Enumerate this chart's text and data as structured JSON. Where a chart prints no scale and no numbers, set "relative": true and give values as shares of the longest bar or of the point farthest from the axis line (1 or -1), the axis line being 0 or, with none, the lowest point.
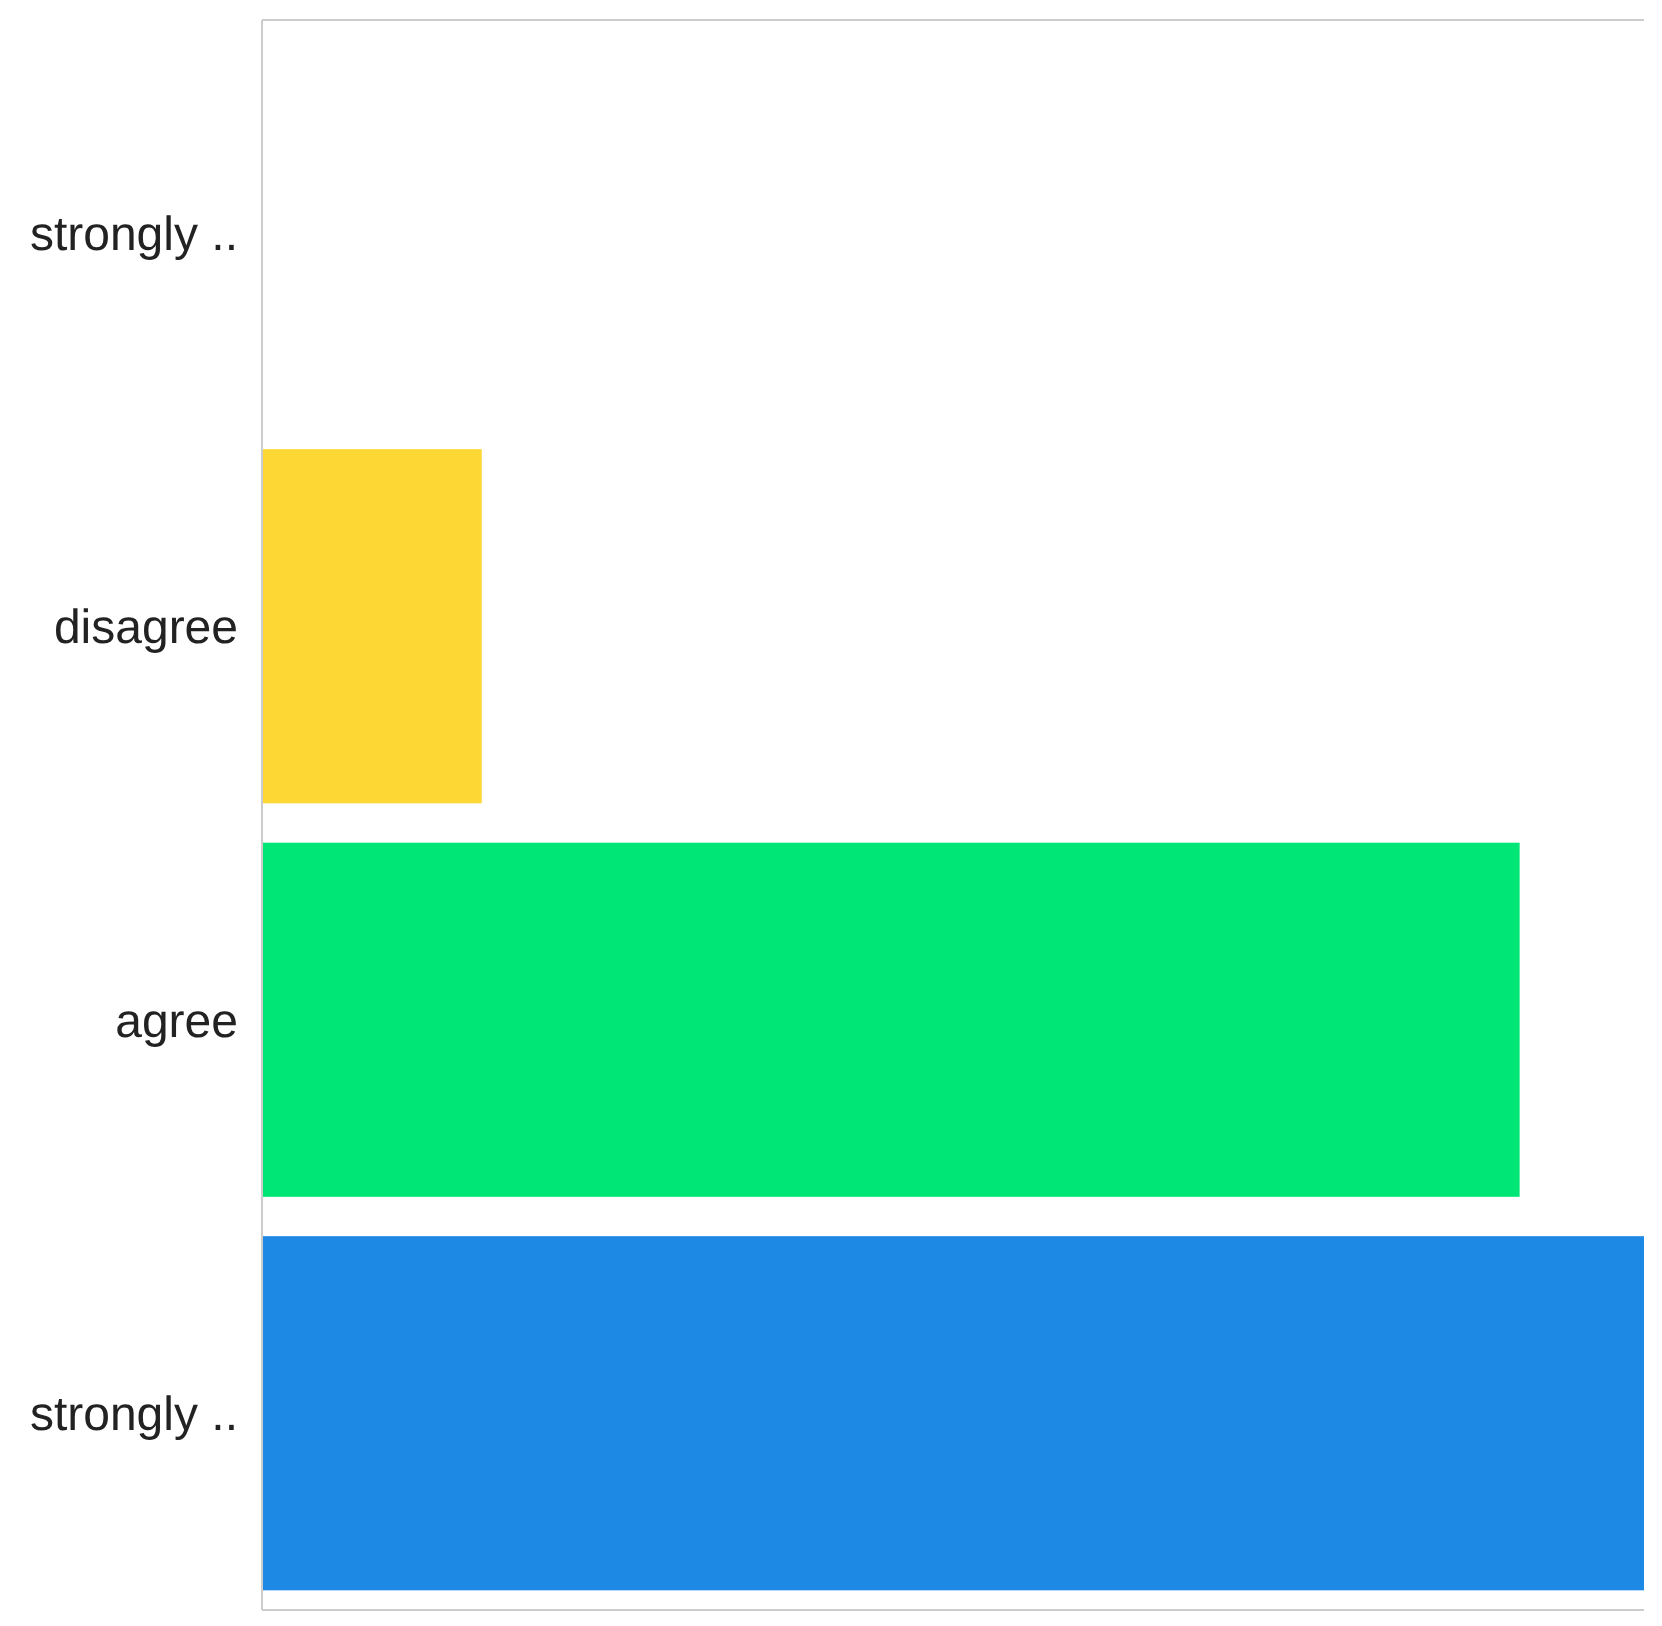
{
  "chart_data": {
    "type": "bar",
    "orientation": "horizontal",
    "relative": true,
    "categories": [
      "strongly ..",
      "disagree",
      "agree",
      "strongly .."
    ],
    "values": [
      0,
      0.159,
      0.91,
      1
    ],
    "colors": [
      "#e53935",
      "#fdd835",
      "#00e676",
      "#1e88e5"
    ]
  }
}
